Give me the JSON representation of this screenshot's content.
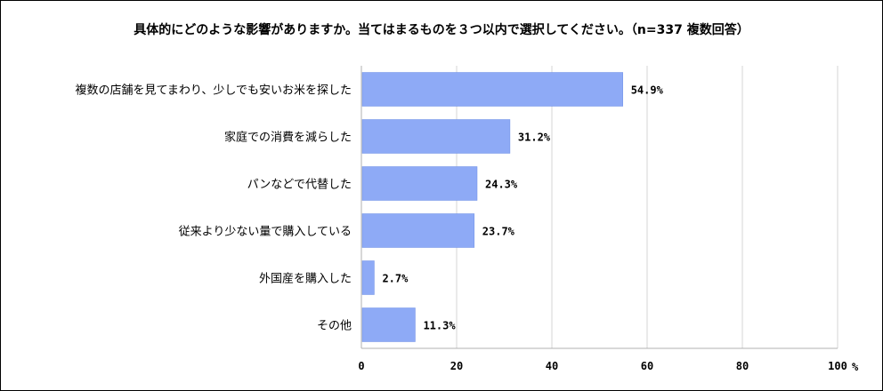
{
  "chart_data": {
    "type": "bar",
    "orientation": "horizontal",
    "title": "具体的にどのような影響がありますか。当てはまるものを３つ以内で選択してください。（n=337 複数回答）",
    "categories": [
      "複数の店舗を見てまわり、少しでも安いお米を探した",
      "家庭での消費を減らした",
      "パンなどで代替した",
      "従来より少ない量で購入している",
      "外国産を購入した",
      "その他"
    ],
    "values": [
      54.9,
      31.2,
      24.3,
      23.7,
      2.7,
      11.3
    ],
    "value_labels": [
      "54.9%",
      "31.2%",
      "24.3%",
      "23.7%",
      "2.7%",
      "11.3%"
    ],
    "xlim": [
      0,
      100
    ],
    "x_ticks": [
      0,
      20,
      40,
      60,
      80,
      100
    ],
    "x_tick_labels": [
      "0",
      "20",
      "40",
      "60",
      "80",
      "100"
    ],
    "x_unit": "%",
    "grid": true,
    "bar_color": "#8eaaf6",
    "bar_border_color": "#6f8fe6",
    "grid_color": "#d4d4d4"
  }
}
